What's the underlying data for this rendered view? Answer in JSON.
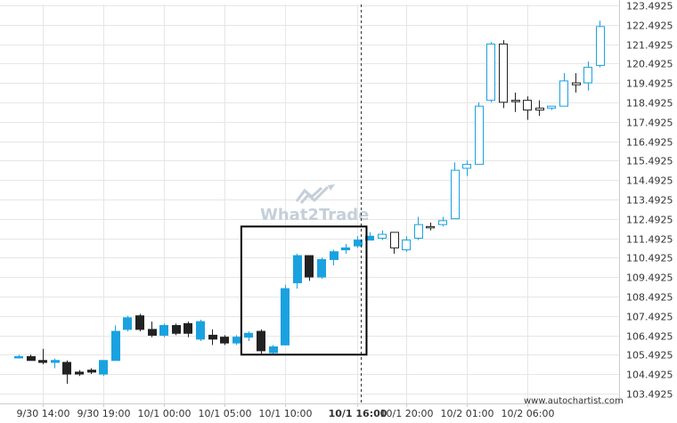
{
  "watermark": "What2Trade",
  "attribution": "www.autochartist.com",
  "colors": {
    "bull": "#1aa2e0",
    "bear": "#222222",
    "gray_up": "#ffffff",
    "gray_down": "#222222",
    "pattern_box": "#000000",
    "marker_line": "#333333",
    "grid": "#e6e6e6",
    "axis": "#cccccc"
  },
  "icons": {
    "watermark_logo": "chart-line-logo"
  },
  "chart_data": {
    "type": "candlestick",
    "title": "",
    "xlabel": "",
    "ylabel": "",
    "grid": true,
    "ylim": [
      103.4925,
      123.4925
    ],
    "y_ticks": [
      "123.4925",
      "122.4925",
      "121.4925",
      "120.4925",
      "119.4925",
      "118.4925",
      "117.4925",
      "116.4925",
      "115.4925",
      "114.4925",
      "113.4925",
      "112.4925",
      "111.4925",
      "110.4925",
      "109.4925",
      "108.4925",
      "107.4925",
      "106.4925",
      "105.4925",
      "104.4925",
      "103.4925"
    ],
    "x_ticks": [
      {
        "label": "9/30 14:00",
        "i": 2,
        "bold": false
      },
      {
        "label": "9/30 19:00",
        "i": 7,
        "bold": false
      },
      {
        "label": "10/1 00:00",
        "i": 12,
        "bold": false
      },
      {
        "label": "10/1 05:00",
        "i": 17,
        "bold": false
      },
      {
        "label": "10/1 10:00",
        "i": 22,
        "bold": false
      },
      {
        "label": "10/1 16:00",
        "i": 28,
        "bold": true
      },
      {
        "label": "10/1 20:00",
        "i": 32,
        "bold": false
      },
      {
        "label": "10/2 01:00",
        "i": 37,
        "bold": false
      },
      {
        "label": "10/2 06:00",
        "i": 42,
        "bold": false
      }
    ],
    "marker_index": 28,
    "pattern_box": {
      "i_start": 19,
      "i_end": 28.6,
      "y_low": 105.5,
      "y_high": 112.1
    },
    "candles": [
      {
        "o": 105.4,
        "h": 105.5,
        "l": 105.3,
        "c": 105.4,
        "k": "bull"
      },
      {
        "o": 105.4,
        "h": 105.5,
        "l": 105.2,
        "c": 105.2,
        "k": "bear"
      },
      {
        "o": 105.2,
        "h": 105.8,
        "l": 105.0,
        "c": 105.1,
        "k": "bear"
      },
      {
        "o": 105.1,
        "h": 105.3,
        "l": 104.8,
        "c": 105.2,
        "k": "bull"
      },
      {
        "o": 105.1,
        "h": 105.2,
        "l": 104.0,
        "c": 104.5,
        "k": "bear"
      },
      {
        "o": 104.5,
        "h": 104.7,
        "l": 104.4,
        "c": 104.6,
        "k": "bear"
      },
      {
        "o": 104.6,
        "h": 104.8,
        "l": 104.5,
        "c": 104.7,
        "k": "bear"
      },
      {
        "o": 104.5,
        "h": 105.2,
        "l": 104.4,
        "c": 105.2,
        "k": "bull"
      },
      {
        "o": 105.2,
        "h": 107.0,
        "l": 105.2,
        "c": 106.7,
        "k": "bull"
      },
      {
        "o": 106.8,
        "h": 107.5,
        "l": 106.7,
        "c": 107.4,
        "k": "bull"
      },
      {
        "o": 107.5,
        "h": 107.6,
        "l": 106.7,
        "c": 106.8,
        "k": "bear"
      },
      {
        "o": 106.8,
        "h": 107.2,
        "l": 106.4,
        "c": 106.5,
        "k": "bear"
      },
      {
        "o": 106.5,
        "h": 107.1,
        "l": 106.4,
        "c": 107.0,
        "k": "bull"
      },
      {
        "o": 107.0,
        "h": 107.1,
        "l": 106.5,
        "c": 106.6,
        "k": "bear"
      },
      {
        "o": 106.6,
        "h": 107.2,
        "l": 106.4,
        "c": 107.1,
        "k": "bear"
      },
      {
        "o": 107.2,
        "h": 107.3,
        "l": 106.2,
        "c": 106.3,
        "k": "bull"
      },
      {
        "o": 106.3,
        "h": 106.8,
        "l": 106.0,
        "c": 106.5,
        "k": "bear"
      },
      {
        "o": 106.1,
        "h": 106.5,
        "l": 106.0,
        "c": 106.4,
        "k": "bear"
      },
      {
        "o": 106.1,
        "h": 106.5,
        "l": 106.0,
        "c": 106.4,
        "k": "bull"
      },
      {
        "o": 106.4,
        "h": 106.7,
        "l": 106.2,
        "c": 106.6,
        "k": "bull"
      },
      {
        "o": 106.7,
        "h": 106.8,
        "l": 105.5,
        "c": 105.7,
        "k": "bear"
      },
      {
        "o": 105.6,
        "h": 106.0,
        "l": 105.5,
        "c": 105.9,
        "k": "bull"
      },
      {
        "o": 106.0,
        "h": 109.1,
        "l": 106.0,
        "c": 108.9,
        "k": "bull"
      },
      {
        "o": 109.2,
        "h": 110.7,
        "l": 108.9,
        "c": 110.6,
        "k": "bull"
      },
      {
        "o": 110.6,
        "h": 110.6,
        "l": 109.3,
        "c": 109.5,
        "k": "bear"
      },
      {
        "o": 109.5,
        "h": 110.5,
        "l": 109.4,
        "c": 110.4,
        "k": "bull"
      },
      {
        "o": 110.4,
        "h": 110.9,
        "l": 110.1,
        "c": 110.8,
        "k": "bull"
      },
      {
        "o": 110.9,
        "h": 111.2,
        "l": 110.7,
        "c": 111.0,
        "k": "bull"
      },
      {
        "o": 111.1,
        "h": 111.6,
        "l": 111.0,
        "c": 111.4,
        "k": "bull"
      },
      {
        "o": 111.4,
        "h": 111.8,
        "l": 111.4,
        "c": 111.6,
        "k": "bull"
      },
      {
        "o": 111.5,
        "h": 111.9,
        "l": 111.4,
        "c": 111.7,
        "k": "gray_up"
      },
      {
        "o": 111.8,
        "h": 111.8,
        "l": 110.7,
        "c": 111.0,
        "k": "gray_down"
      },
      {
        "o": 110.9,
        "h": 111.6,
        "l": 110.8,
        "c": 111.4,
        "k": "gray_up"
      },
      {
        "o": 111.5,
        "h": 112.6,
        "l": 111.4,
        "c": 112.2,
        "k": "gray_up"
      },
      {
        "o": 112.1,
        "h": 112.3,
        "l": 111.9,
        "c": 112.1,
        "k": "gray_down"
      },
      {
        "o": 112.2,
        "h": 112.6,
        "l": 112.1,
        "c": 112.4,
        "k": "gray_up"
      },
      {
        "o": 112.5,
        "h": 115.4,
        "l": 112.5,
        "c": 115.0,
        "k": "gray_up"
      },
      {
        "o": 115.1,
        "h": 115.5,
        "l": 114.7,
        "c": 115.3,
        "k": "gray_up"
      },
      {
        "o": 115.3,
        "h": 118.5,
        "l": 115.3,
        "c": 118.3,
        "k": "gray_up"
      },
      {
        "o": 118.6,
        "h": 121.6,
        "l": 118.5,
        "c": 121.5,
        "k": "gray_up"
      },
      {
        "o": 121.5,
        "h": 121.7,
        "l": 118.2,
        "c": 118.5,
        "k": "gray_down"
      },
      {
        "o": 118.6,
        "h": 119.0,
        "l": 118.0,
        "c": 118.6,
        "k": "gray_down"
      },
      {
        "o": 118.6,
        "h": 118.8,
        "l": 117.6,
        "c": 118.1,
        "k": "gray_down"
      },
      {
        "o": 118.1,
        "h": 118.6,
        "l": 117.8,
        "c": 118.2,
        "k": "gray_down"
      },
      {
        "o": 118.2,
        "h": 118.3,
        "l": 118.1,
        "c": 118.3,
        "k": "gray_up"
      },
      {
        "o": 118.3,
        "h": 120.0,
        "l": 118.3,
        "c": 119.6,
        "k": "gray_up"
      },
      {
        "o": 119.5,
        "h": 120.0,
        "l": 119.0,
        "c": 119.4,
        "k": "gray_down"
      },
      {
        "o": 119.5,
        "h": 120.6,
        "l": 119.1,
        "c": 120.3,
        "k": "gray_up"
      },
      {
        "o": 120.4,
        "h": 122.7,
        "l": 120.3,
        "c": 122.4,
        "k": "gray_up"
      }
    ]
  }
}
